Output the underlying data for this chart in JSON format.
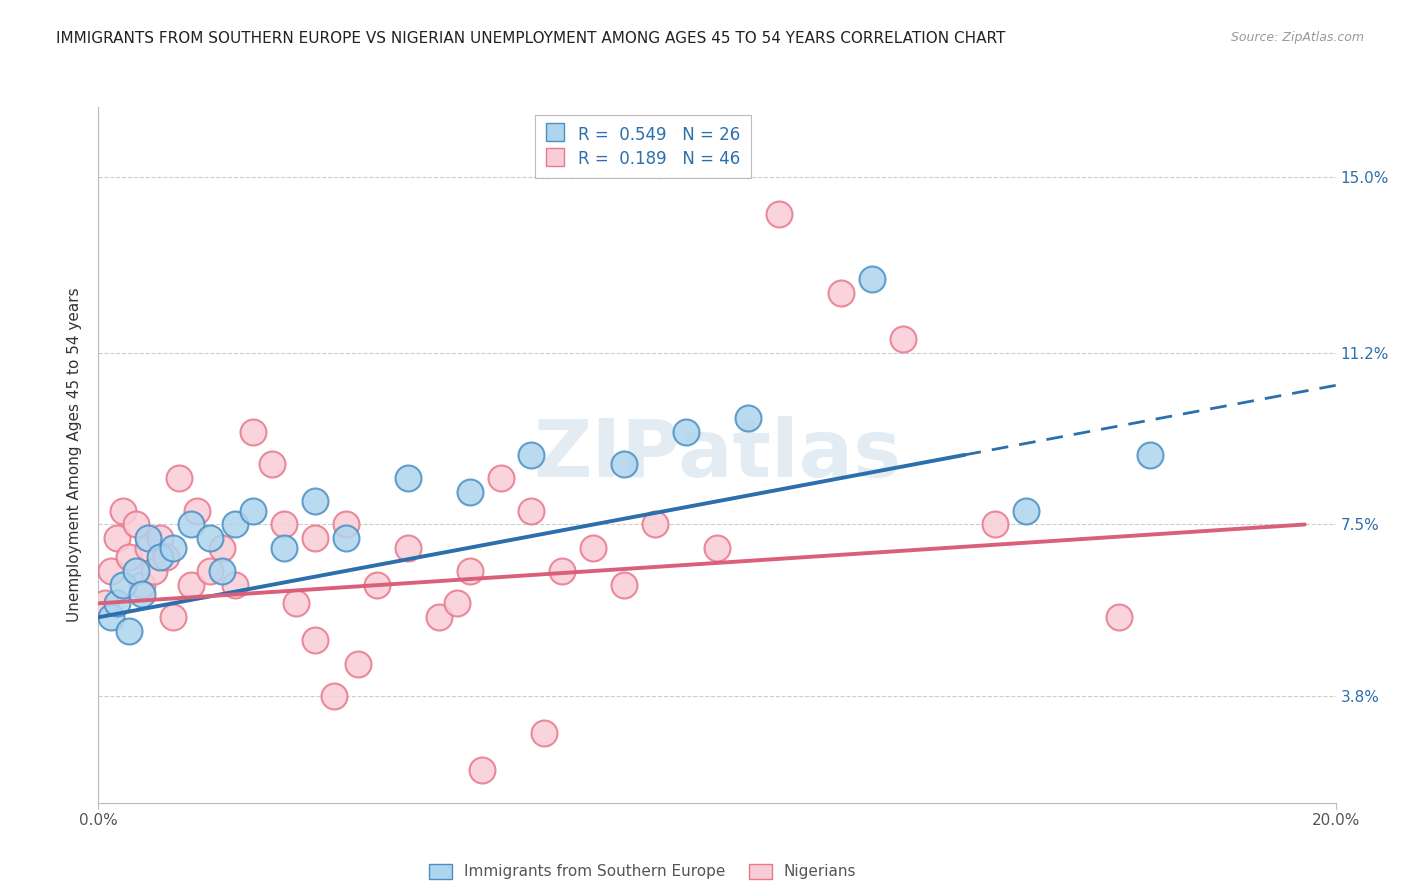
{
  "title": "IMMIGRANTS FROM SOUTHERN EUROPE VS NIGERIAN UNEMPLOYMENT AMONG AGES 45 TO 54 YEARS CORRELATION CHART",
  "source": "Source: ZipAtlas.com",
  "ylabel": "Unemployment Among Ages 45 to 54 years",
  "xlim": [
    0.0,
    20.0
  ],
  "ylim": [
    1.5,
    16.5
  ],
  "yticks": [
    3.8,
    7.5,
    11.2,
    15.0
  ],
  "ytick_labels": [
    "3.8%",
    "7.5%",
    "11.2%",
    "15.0%"
  ],
  "blue_color": "#aed4ee",
  "pink_color": "#f9cdd8",
  "blue_edge_color": "#4a90c4",
  "pink_edge_color": "#e8788a",
  "blue_line_color": "#2c6fad",
  "pink_line_color": "#d95f7a",
  "blue_scatter_x": [
    0.2,
    0.3,
    0.4,
    0.5,
    0.6,
    0.7,
    0.8,
    1.0,
    1.2,
    1.5,
    1.8,
    2.0,
    2.2,
    2.5,
    3.0,
    3.5,
    4.0,
    5.0,
    6.0,
    7.0,
    8.5,
    9.5,
    10.5,
    12.5,
    15.0,
    17.0
  ],
  "blue_scatter_y": [
    5.5,
    5.8,
    6.2,
    5.2,
    6.5,
    6.0,
    7.2,
    6.8,
    7.0,
    7.5,
    7.2,
    6.5,
    7.5,
    7.8,
    7.0,
    8.0,
    7.2,
    8.5,
    8.2,
    9.0,
    8.8,
    9.5,
    9.8,
    12.8,
    7.8,
    9.0
  ],
  "pink_scatter_x": [
    0.1,
    0.2,
    0.3,
    0.4,
    0.5,
    0.6,
    0.7,
    0.8,
    0.9,
    1.0,
    1.1,
    1.2,
    1.3,
    1.5,
    1.6,
    1.8,
    2.0,
    2.2,
    2.5,
    2.8,
    3.0,
    3.2,
    3.5,
    3.8,
    4.0,
    4.5,
    5.0,
    5.5,
    6.0,
    6.5,
    7.0,
    7.5,
    8.0,
    8.5,
    9.0,
    10.0,
    11.0,
    12.0,
    13.0,
    14.5,
    16.5,
    3.5,
    4.2,
    5.8,
    6.2,
    7.2
  ],
  "pink_scatter_y": [
    5.8,
    6.5,
    7.2,
    7.8,
    6.8,
    7.5,
    6.2,
    7.0,
    6.5,
    7.2,
    6.8,
    5.5,
    8.5,
    6.2,
    7.8,
    6.5,
    7.0,
    6.2,
    9.5,
    8.8,
    7.5,
    5.8,
    7.2,
    3.8,
    7.5,
    6.2,
    7.0,
    5.5,
    6.5,
    8.5,
    7.8,
    6.5,
    7.0,
    6.2,
    7.5,
    7.0,
    14.2,
    12.5,
    11.5,
    7.5,
    5.5,
    5.0,
    4.5,
    5.8,
    2.2,
    3.0
  ],
  "blue_trend_x0": 0.0,
  "blue_trend_x1": 20.0,
  "blue_trend_y0": 5.5,
  "blue_trend_y1": 10.5,
  "blue_solid_end_x": 14.0,
  "pink_trend_x0": 0.0,
  "pink_trend_x1": 19.5,
  "pink_trend_y0": 5.8,
  "pink_trend_y1": 7.5,
  "watermark": "ZIPatlas",
  "background_color": "#ffffff",
  "grid_color": "#cccccc",
  "title_fontsize": 11,
  "source_fontsize": 9,
  "ylabel_fontsize": 11,
  "tick_fontsize": 11,
  "legend_label_blue": "R =  0.549   N = 26",
  "legend_label_pink": "R =  0.189   N = 46",
  "bottom_legend_blue": "Immigrants from Southern Europe",
  "bottom_legend_pink": "Nigerians"
}
